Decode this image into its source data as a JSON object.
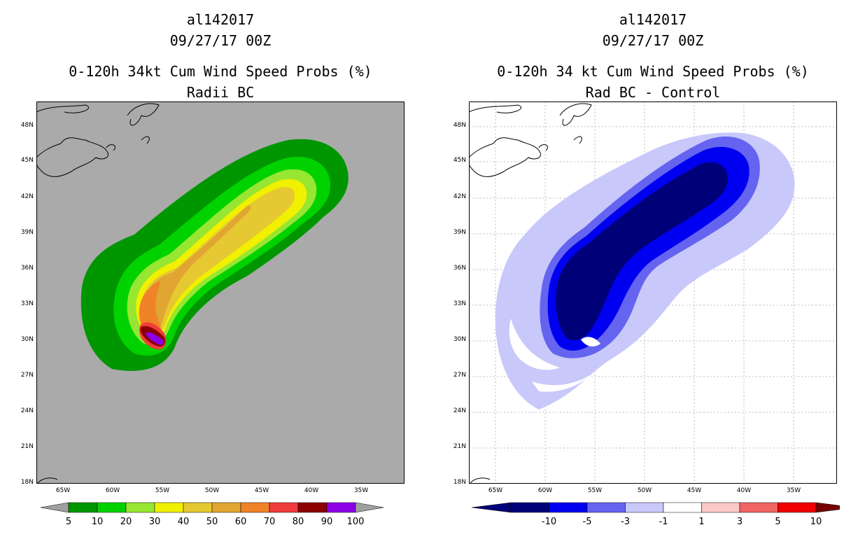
{
  "left": {
    "storm_id": "al142017",
    "date": "09/27/17 00Z",
    "title": "0-120h 34kt Cum Wind Speed Probs (%)",
    "subtitle": "Radii BC",
    "colorbar": {
      "labels": [
        "5",
        "10",
        "20",
        "30",
        "40",
        "50",
        "60",
        "70",
        "80",
        "90",
        "100"
      ],
      "colors": [
        "#009600",
        "#00d200",
        "#96e632",
        "#f0f000",
        "#e6c832",
        "#e1a532",
        "#f08228",
        "#f03c3c",
        "#8c0000",
        "#8c00e6"
      ],
      "end_arrow_color": "#a0a0a0"
    }
  },
  "right": {
    "storm_id": "al142017",
    "date": "09/27/17 00Z",
    "title": "0-120h 34 kt Cum Wind Speed Probs (%)",
    "subtitle": "Rad BC - Control",
    "colorbar": {
      "labels": [
        "-10",
        "-5",
        "-3",
        "-1",
        "1",
        "3",
        "5",
        "10"
      ],
      "colors": [
        "#000078",
        "#0000f0",
        "#6464f0",
        "#c8c8fa",
        "#ffffff",
        "#fac8c8",
        "#f06464",
        "#f00000"
      ],
      "low_arrow_color": "#000078",
      "high_arrow_color": "#780000"
    }
  },
  "map": {
    "lat_labels": [
      "48N",
      "45N",
      "42N",
      "39N",
      "36N",
      "33N",
      "30N",
      "27N",
      "24N",
      "21N",
      "18N"
    ],
    "lon_labels": [
      "65W",
      "60W",
      "55W",
      "50W",
      "45W",
      "40W",
      "35W"
    ],
    "left_background": "#aaaaaa"
  }
}
